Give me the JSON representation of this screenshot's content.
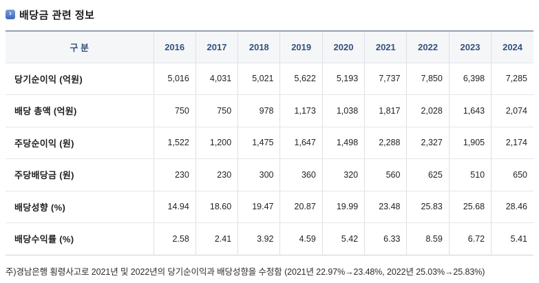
{
  "title": {
    "icon": "chevron-right-icon",
    "text": "배당금 관련 정보"
  },
  "chart_data": {
    "type": "table",
    "title": "배당금 관련 정보",
    "corner_label": "구 분",
    "categories": [
      "2016",
      "2017",
      "2018",
      "2019",
      "2020",
      "2021",
      "2022",
      "2023",
      "2024"
    ],
    "series": [
      {
        "name": "당기순이익 (억원)",
        "values": [
          "5,016",
          "4,031",
          "5,021",
          "5,622",
          "5,193",
          "7,737",
          "7,850",
          "6,398",
          "7,285"
        ]
      },
      {
        "name": "배당 총액 (억원)",
        "values": [
          "750",
          "750",
          "978",
          "1,173",
          "1,038",
          "1,817",
          "2,028",
          "1,643",
          "2,074"
        ]
      },
      {
        "name": "주당순이익 (원)",
        "values": [
          "1,522",
          "1,200",
          "1,475",
          "1,647",
          "1,498",
          "2,288",
          "2,327",
          "1,905",
          "2,174"
        ]
      },
      {
        "name": "주당배당금 (원)",
        "values": [
          "230",
          "230",
          "300",
          "360",
          "320",
          "560",
          "625",
          "510",
          "650"
        ]
      },
      {
        "name": "배당성향 (%)",
        "values": [
          "14.94",
          "18.60",
          "19.47",
          "20.87",
          "19.99",
          "23.48",
          "25.83",
          "25.68",
          "28.46"
        ]
      },
      {
        "name": "배당수익률 (%)",
        "values": [
          "2.58",
          "2.41",
          "3.92",
          "4.59",
          "5.42",
          "6.33",
          "8.59",
          "6.72",
          "5.41"
        ]
      }
    ],
    "layout": {
      "grid": true,
      "header_position": "top",
      "value_align": "right"
    }
  },
  "footnote": "주)경남은행 횡령사고로 2021년 및 2022년의 당기순이익과 배당성향을 수정함 (2021년 22.97%→23.48%, 2022년 25.03%→25.83%)",
  "colors": {
    "accent": "#4a74c9",
    "header_text": "#33517e",
    "header_bg": "#f5f6f8",
    "table_top_border": "#98a0ae",
    "grid_line": "#dce0e5",
    "text": "#222222"
  }
}
